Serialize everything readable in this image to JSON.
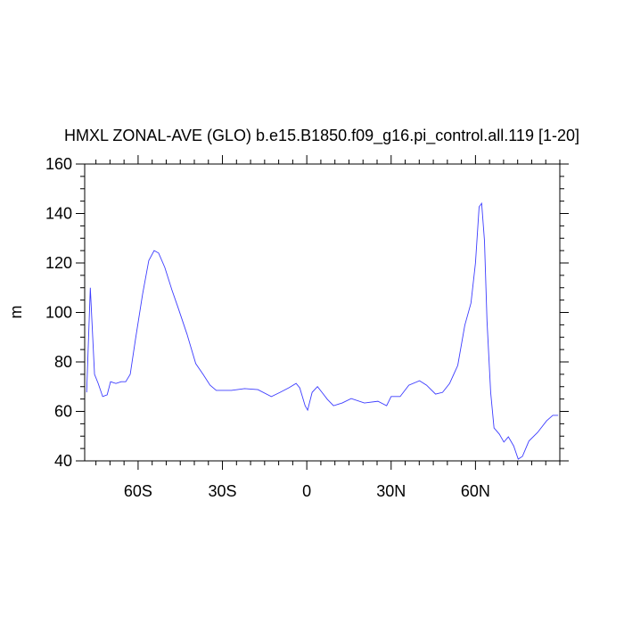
{
  "chart_data": {
    "type": "line",
    "title": "HMXL ZONAL-AVE (GLO) b.e15.B1850.f09_g16.pi_control.all.119 [1-20]",
    "ylabel": "m",
    "xlim": [
      -79,
      90
    ],
    "ylim": [
      40,
      160
    ],
    "xticks": [
      {
        "value": -60,
        "label": "60S"
      },
      {
        "value": -30,
        "label": "30S"
      },
      0,
      {
        "value": 30,
        "label": "30N"
      },
      {
        "value": 60,
        "label": "60N"
      }
    ],
    "yticks": [
      40,
      60,
      80,
      100,
      120,
      140,
      160
    ],
    "xminorticks": [
      -75,
      -70,
      -65,
      -55,
      -50,
      -45,
      -40,
      -35,
      -25,
      -20,
      -15,
      -10,
      -5,
      5,
      10,
      15,
      20,
      25,
      35,
      40,
      45,
      50,
      55,
      65,
      70,
      75,
      80,
      85,
      90
    ],
    "yminorticks": [
      45,
      50,
      55,
      65,
      70,
      75,
      85,
      90,
      95,
      105,
      110,
      115,
      125,
      130,
      135,
      145,
      150,
      155
    ],
    "x": [
      -78.3,
      -77,
      -75.5,
      -74.2,
      -72.6,
      -71,
      -69.8,
      -67.9,
      -66,
      -64.4,
      -62.8,
      -60.9,
      -58.4,
      -56.2,
      -54.3,
      -52.7,
      -50.5,
      -48,
      -45.8,
      -42.6,
      -39.5,
      -36.9,
      -34.4,
      -32.2,
      -26.8,
      -22.1,
      -17.4,
      -12.6,
      -9.5,
      -6.3,
      -3.8,
      -2.5,
      -0.6,
      0.3,
      1.9,
      3.8,
      5.4,
      7.3,
      9.5,
      12.6,
      15.8,
      20.5,
      25.3,
      28.4,
      30,
      33.2,
      36.3,
      40.1,
      42.6,
      45.8,
      48.3,
      50.8,
      53.7,
      56.2,
      58.4,
      60,
      61.3,
      62.2,
      63.2,
      64.1,
      65.4,
      66.6,
      68.5,
      70.1,
      71.7,
      73.6,
      75.2,
      76.7,
      79,
      82.1,
      85.3,
      87.5,
      89.4
    ],
    "series": [
      {
        "color": "#3c3cff",
        "values": [
          67.7,
          110,
          75,
          71.3,
          66,
          66.7,
          72,
          71.3,
          72,
          72,
          75,
          89.4,
          107.4,
          121,
          125,
          124,
          118.2,
          109.2,
          102,
          91.2,
          79.3,
          75,
          70.6,
          68.5,
          68.5,
          69.2,
          68.8,
          66,
          67.7,
          69.6,
          71.3,
          69.5,
          62.3,
          60.5,
          67.7,
          70,
          67.7,
          64.9,
          62.3,
          63.4,
          65.2,
          63.4,
          64.1,
          62.3,
          66,
          66,
          70.6,
          72.4,
          70.6,
          67,
          67.7,
          71.3,
          78.6,
          94.8,
          103.8,
          120,
          142.7,
          144.1,
          129,
          96.6,
          67.7,
          53.3,
          50.8,
          47.6,
          49.7,
          46,
          40.7,
          41.8,
          48,
          51.5,
          56.2,
          58.4,
          58.4
        ]
      }
    ]
  }
}
